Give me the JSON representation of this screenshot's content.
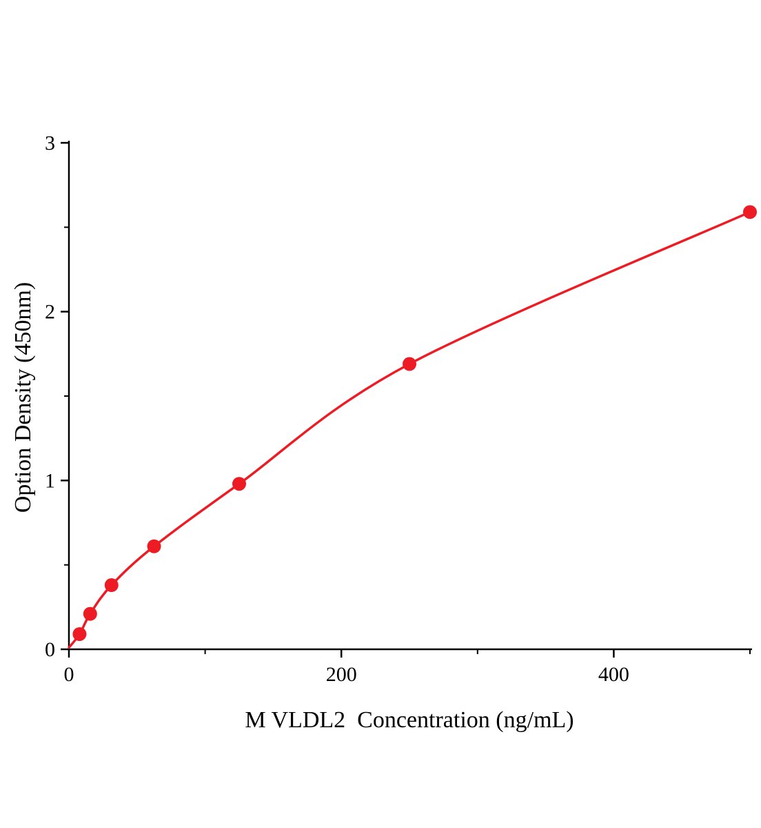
{
  "chart_data": {
    "type": "scatter",
    "title": "",
    "xlabel": "M VLDL2  Concentration (ng/mL)",
    "ylabel": "Option Density (450nm)",
    "x": [
      7.8,
      15.6,
      31.25,
      62.5,
      125,
      250,
      500
    ],
    "y": [
      0.09,
      0.21,
      0.38,
      0.61,
      0.98,
      1.69,
      2.59
    ],
    "curve_origin": [
      0,
      0.01
    ],
    "xlim": [
      0,
      500
    ],
    "ylim": [
      0,
      3
    ],
    "x_major_ticks": [
      0,
      200,
      400
    ],
    "x_minor_ticks": [
      100,
      300,
      500
    ],
    "y_major_ticks": [
      0,
      1,
      2,
      3
    ],
    "y_minor_ticks": [
      0.5,
      1.5,
      2.5
    ],
    "curve": "smooth",
    "grid": false,
    "legend": null,
    "marker_color": "#ed1c24",
    "line_color": "#ed1c24",
    "axis_color": "#000000",
    "tick_label_color": "#000000"
  }
}
